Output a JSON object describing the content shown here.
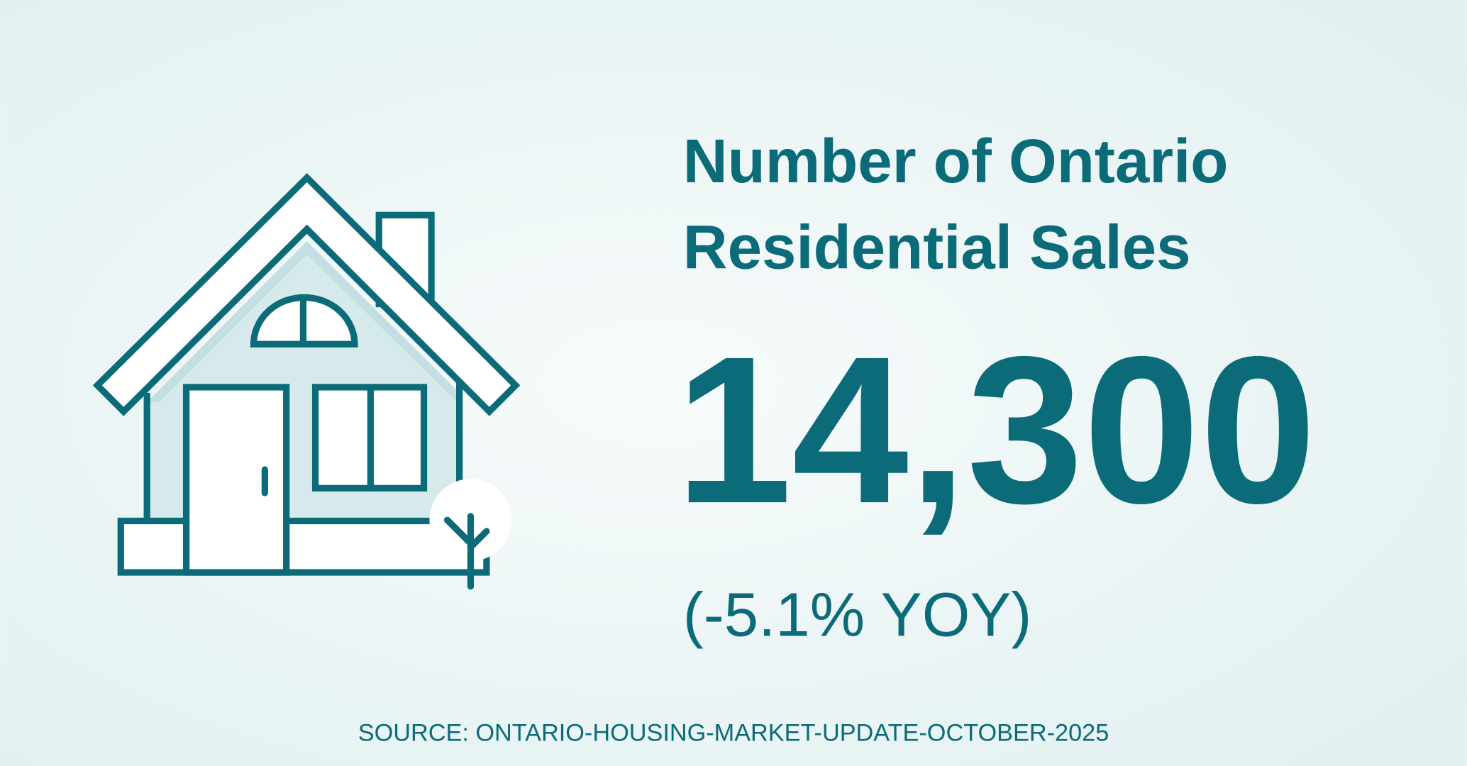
{
  "title_lines": [
    "Number of Ontario",
    "Residential Sales"
  ],
  "value": "14,300",
  "change": "(-5.1% YOY)",
  "source": "SOURCE: ONTARIO-HOUSING-MARKET-UPDATE-OCTOBER-2025"
}
